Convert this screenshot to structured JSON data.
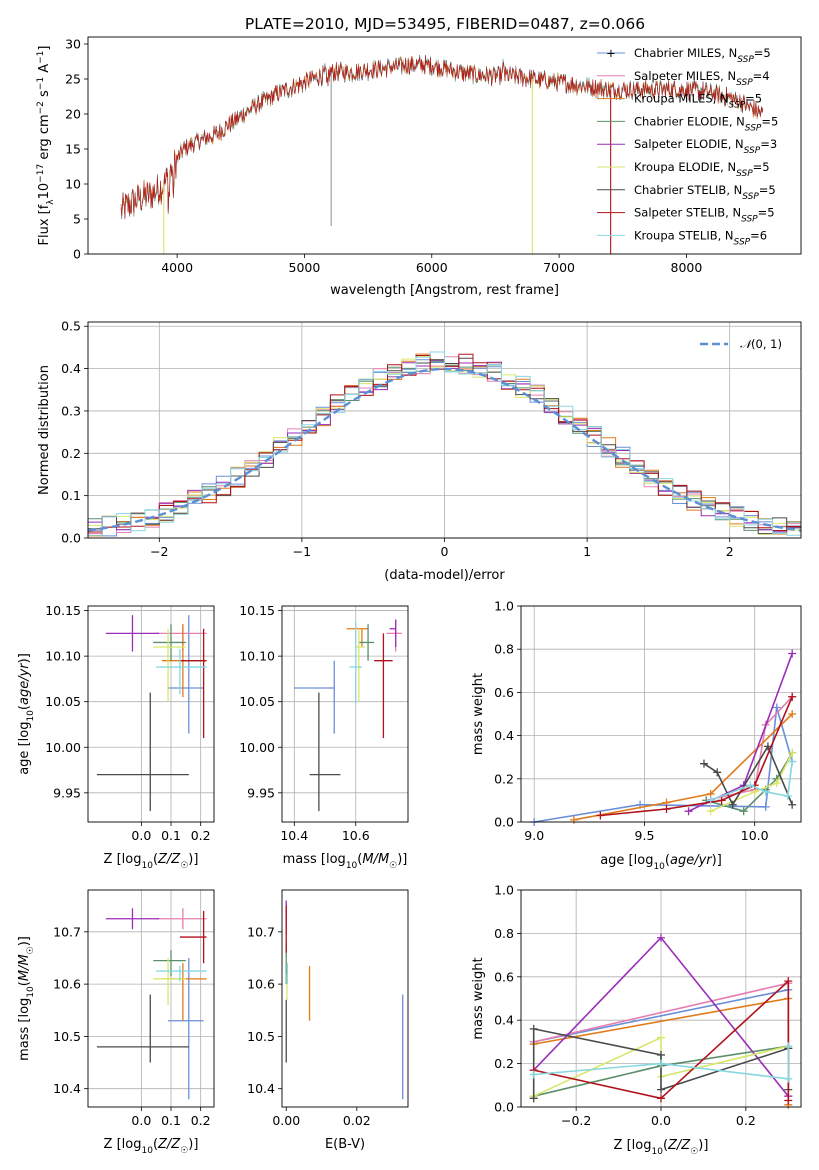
{
  "figure_title": "PLATE=2010, MJD=53495, FIBERID=0487, z=0.066",
  "colors": {
    "series": [
      "#6b8fd6",
      "#e57fb0",
      "#e07b1a",
      "#5b8f6b",
      "#9b2eb8",
      "#d9e66a",
      "#4a4a4a",
      "#b0121b",
      "#87d7e0"
    ],
    "gaussian": "#5b8fd6",
    "grid": "#b0b0b0"
  },
  "series_names": [
    "Chabrier MILES",
    "Salpeter MILES",
    "Kroupa MILES",
    "Chabrier ELODIE",
    "Salpeter ELODIE",
    "Kroupa ELODIE",
    "Chabrier STELIB",
    "Salpeter STELIB",
    "Kroupa STELIB"
  ],
  "chart_data": [
    {
      "id": "spectrum",
      "type": "line",
      "title": "PLATE=2010, MJD=53495, FIBERID=0487, z=0.066",
      "xlabel": "wavelength [Angstrom, rest frame]",
      "ylabel": "Flux [fλ10⁻¹⁷ erg cm⁻² s⁻¹ A⁻¹]",
      "xlim": [
        3300,
        8900
      ],
      "ylim": [
        0,
        31
      ],
      "xticks": [
        "4000",
        "5000",
        "6000",
        "7000",
        "8000"
      ],
      "yticks": [
        "0",
        "5",
        "10",
        "15",
        "20",
        "25",
        "30"
      ],
      "continuum_anchors": {
        "x": [
          3550,
          3700,
          3800,
          3900,
          3950,
          4050,
          4150,
          4300,
          4450,
          4600,
          4800,
          5000,
          5200,
          5400,
          5600,
          5800,
          6000,
          6200,
          6400,
          6600,
          6800,
          7000,
          7200,
          7400,
          7600,
          7800,
          8000,
          8200,
          8400,
          8600
        ],
        "y": [
          6,
          8,
          8.5,
          10,
          12,
          15,
          16,
          17,
          19,
          21,
          23,
          24.5,
          26,
          26,
          26.5,
          27,
          27,
          26,
          25.5,
          25.5,
          25,
          24.5,
          24,
          23.5,
          23.5,
          23.5,
          23.5,
          23,
          22,
          20
        ]
      },
      "legend": [
        "Chabrier MILES, N_SSP=5",
        "Salpeter MILES, N_SSP=4",
        "Kroupa MILES, N_SSP=5",
        "Chabrier ELODIE, N_SSP=5",
        "Salpeter ELODIE, N_SSP=3",
        "Kroupa ELODIE, N_SSP=5",
        "Chabrier STELIB, N_SSP=5",
        "Salpeter STELIB, N_SSP=5",
        "Kroupa STELIB, N_SSP=6"
      ],
      "legend_position": "top-right",
      "grid": false
    },
    {
      "id": "residuals",
      "type": "histogram",
      "xlabel": "(data-model)/error",
      "ylabel": "Normed distribution",
      "xlim": [
        -2.5,
        2.5
      ],
      "ylim": [
        0,
        0.51
      ],
      "xticks": [
        "−2",
        "−1",
        "0",
        "1",
        "2"
      ],
      "yticks": [
        "0.0",
        "0.1",
        "0.2",
        "0.3",
        "0.4",
        "0.5"
      ],
      "bin_width": 0.1,
      "legend": [
        "𝒩(0, 1)"
      ],
      "legend_position": "top-right",
      "grid": true
    },
    {
      "id": "age_vs_Z",
      "type": "errorbar",
      "xlabel": "Z [log10(Z/Z☉)]",
      "ylabel": "age  [log10(age/yr)]",
      "xlim": [
        -0.18,
        0.245
      ],
      "ylim": [
        9.918,
        10.155
      ],
      "xticks": [
        "0.0",
        "0.1",
        "0.2"
      ],
      "yticks": [
        "9.95",
        "10.00",
        "10.05",
        "10.10",
        "10.15"
      ],
      "points": [
        {
          "x": 0.16,
          "y": 10.065,
          "xerr": [
            0.07,
            0.05
          ],
          "yerr": [
            0.05,
            0.08
          ]
        },
        {
          "x": 0.14,
          "y": 10.125,
          "xerr": [
            0.09,
            0.08
          ],
          "yerr": [
            0.02,
            0.01
          ]
        },
        {
          "x": 0.14,
          "y": 10.095,
          "xerr": [
            0.07,
            0.08
          ],
          "yerr": [
            0.04,
            0.04
          ]
        },
        {
          "x": 0.1,
          "y": 10.115,
          "xerr": [
            0.06,
            0.05
          ],
          "yerr": [
            0.02,
            0.02
          ]
        },
        {
          "x": -0.03,
          "y": 10.125,
          "xerr": [
            0.09,
            0.09
          ],
          "yerr": [
            0.02,
            0.02
          ]
        },
        {
          "x": 0.09,
          "y": 10.11,
          "xerr": [
            0.05,
            0.06
          ],
          "yerr": [
            0.06,
            0.02
          ]
        },
        {
          "x": 0.03,
          "y": 9.97,
          "xerr": [
            0.18,
            0.13
          ],
          "yerr": [
            0.04,
            0.09
          ]
        },
        {
          "x": 0.21,
          "y": 10.095,
          "xerr": [
            0.08,
            0.01
          ],
          "yerr": [
            0.085,
            0.035
          ]
        },
        {
          "x": 0.13,
          "y": 10.088,
          "xerr": [
            0.08,
            0.09
          ],
          "yerr": [
            0.03,
            0.02
          ]
        }
      ],
      "grid": true
    },
    {
      "id": "age_vs_mass",
      "type": "errorbar",
      "xlabel": "mass [log10(M/M☉)]",
      "ylabel": "",
      "xlim": [
        10.36,
        10.77
      ],
      "ylim": [
        9.918,
        10.155
      ],
      "xticks": [
        "10.4",
        "10.6"
      ],
      "yticks": [
        "9.95",
        "10.00",
        "10.05",
        "10.10",
        "10.15"
      ],
      "points": [
        {
          "x": 10.53,
          "y": 10.065,
          "xerr": [
            0.13,
            0.0
          ],
          "yerr": [
            0.05,
            0.03
          ]
        },
        {
          "x": 10.73,
          "y": 10.125,
          "xerr": [
            0.03,
            0.02
          ],
          "yerr": [
            0.02,
            0.015
          ]
        },
        {
          "x": 10.62,
          "y": 10.13,
          "xerr": [
            0.05,
            0.02
          ],
          "yerr": [
            0.02,
            0.0
          ]
        },
        {
          "x": 10.64,
          "y": 10.115,
          "xerr": [
            0.03,
            0.02
          ],
          "yerr": [
            0.02,
            0.02
          ]
        },
        {
          "x": 10.73,
          "y": 10.13,
          "xerr": [
            0.02,
            0.0
          ],
          "yerr": [
            0.02,
            0.01
          ]
        },
        {
          "x": 10.61,
          "y": 10.11,
          "xerr": [
            0.01,
            0.02
          ],
          "yerr": [
            0.06,
            0.02
          ]
        },
        {
          "x": 10.48,
          "y": 9.97,
          "xerr": [
            0.03,
            0.07
          ],
          "yerr": [
            0.04,
            0.09
          ]
        },
        {
          "x": 10.69,
          "y": 10.095,
          "xerr": [
            0.03,
            0.03
          ],
          "yerr": [
            0.085,
            0.03
          ]
        },
        {
          "x": 10.6,
          "y": 10.088,
          "xerr": [
            0.02,
            0.02
          ],
          "yerr": [
            0.04,
            0.05
          ]
        }
      ],
      "grid": true
    },
    {
      "id": "weight_vs_age",
      "type": "line",
      "xlabel": "age  [log10(age/yr)]",
      "ylabel": "mass weight",
      "xlim": [
        8.94,
        10.21
      ],
      "ylim": [
        0,
        1
      ],
      "xticks": [
        "9.0",
        "9.5",
        "10.0"
      ],
      "yticks": [
        "0.0",
        "0.2",
        "0.4",
        "0.6",
        "0.8",
        "1.0"
      ],
      "series": [
        {
          "x": [
            9.0,
            9.48,
            10.05,
            10.1,
            10.17
          ],
          "y": [
            0.0,
            0.08,
            0.07,
            0.53,
            0.28
          ]
        },
        {
          "x": [
            9.78,
            10.0,
            10.05,
            10.17
          ],
          "y": [
            0.1,
            0.15,
            0.45,
            0.58
          ]
        },
        {
          "x": [
            9.18,
            9.6,
            9.8,
            10.17
          ],
          "y": [
            0.01,
            0.09,
            0.13,
            0.5
          ]
        },
        {
          "x": [
            9.78,
            9.95,
            10.05,
            10.1,
            10.17
          ],
          "y": [
            0.1,
            0.05,
            0.15,
            0.2,
            0.32
          ]
        },
        {
          "x": [
            9.7,
            9.95,
            10.17
          ],
          "y": [
            0.05,
            0.17,
            0.78
          ]
        },
        {
          "x": [
            9.8,
            10.0,
            10.1,
            10.17
          ],
          "y": [
            0.05,
            0.14,
            0.18,
            0.32
          ]
        },
        {
          "x": [
            9.77,
            9.83,
            9.9,
            10.06,
            10.17
          ],
          "y": [
            0.27,
            0.23,
            0.08,
            0.35,
            0.08
          ]
        },
        {
          "x": [
            9.3,
            9.6,
            9.85,
            10.0,
            10.17
          ],
          "y": [
            0.03,
            0.06,
            0.1,
            0.17,
            0.58
          ]
        },
        {
          "x": [
            9.8,
            9.98,
            10.05,
            10.15,
            10.17
          ],
          "y": [
            0.1,
            0.17,
            0.14,
            0.12,
            0.28
          ]
        }
      ],
      "grid": true
    },
    {
      "id": "mass_vs_Z",
      "type": "errorbar",
      "xlabel": "Z [log10(Z/Z☉)]",
      "ylabel": "mass [log10(M/M☉)]",
      "xlim": [
        -0.18,
        0.245
      ],
      "ylim": [
        10.365,
        10.78
      ],
      "xticks": [
        "0.0",
        "0.1",
        "0.2"
      ],
      "yticks": [
        "10.4",
        "10.5",
        "10.6",
        "10.7"
      ],
      "points": [
        {
          "x": 0.16,
          "y": 10.53,
          "xerr": [
            0.07,
            0.05
          ],
          "yerr": [
            0.15,
            0.12
          ]
        },
        {
          "x": 0.14,
          "y": 10.725,
          "xerr": [
            0.09,
            0.08
          ],
          "yerr": [
            0.02,
            0.02
          ]
        },
        {
          "x": 0.14,
          "y": 10.61,
          "xerr": [
            0.07,
            0.08
          ],
          "yerr": [
            0.08,
            0.03
          ]
        },
        {
          "x": 0.1,
          "y": 10.645,
          "xerr": [
            0.06,
            0.05
          ],
          "yerr": [
            0.03,
            0.02
          ]
        },
        {
          "x": -0.03,
          "y": 10.725,
          "xerr": [
            0.09,
            0.09
          ],
          "yerr": [
            0.02,
            0.02
          ]
        },
        {
          "x": 0.09,
          "y": 10.61,
          "xerr": [
            0.05,
            0.06
          ],
          "yerr": [
            0.05,
            0.04
          ]
        },
        {
          "x": 0.03,
          "y": 10.48,
          "xerr": [
            0.18,
            0.13
          ],
          "yerr": [
            0.03,
            0.1
          ]
        },
        {
          "x": 0.21,
          "y": 10.69,
          "xerr": [
            0.08,
            0.01
          ],
          "yerr": [
            0.05,
            0.05
          ]
        },
        {
          "x": 0.13,
          "y": 10.625,
          "xerr": [
            0.08,
            0.09
          ],
          "yerr": [
            0.02,
            0.01
          ]
        }
      ],
      "grid": true
    },
    {
      "id": "mass_vs_ebv",
      "type": "errorbar",
      "xlabel": "E(B-V)",
      "ylabel": "",
      "xlim": [
        -0.0012,
        0.0345
      ],
      "ylim": [
        10.365,
        10.78
      ],
      "xticks": [
        "0.00",
        "0.02"
      ],
      "yticks": [
        "10.4",
        "10.5",
        "10.6",
        "10.7"
      ],
      "points": [
        {
          "x": 0.033,
          "y": 10.48,
          "xerr": [
            0,
            0
          ],
          "yerr": [
            0.1,
            0.1
          ]
        },
        {
          "x": 0.0,
          "y": 10.725,
          "xerr": [
            0,
            0
          ],
          "yerr": [
            0.03,
            0.03
          ]
        },
        {
          "x": 0.0066,
          "y": 10.585,
          "xerr": [
            0,
            0
          ],
          "yerr": [
            0.055,
            0.05
          ]
        },
        {
          "x": 0.0,
          "y": 10.64,
          "xerr": [
            0,
            0
          ],
          "yerr": [
            0.04,
            0.04
          ]
        },
        {
          "x": 0.0,
          "y": 10.73,
          "xerr": [
            0,
            0
          ],
          "yerr": [
            0.02,
            0.03
          ]
        },
        {
          "x": 0.0002,
          "y": 10.6,
          "xerr": [
            0,
            0
          ],
          "yerr": [
            0.03,
            0.02
          ]
        },
        {
          "x": 0.0,
          "y": 10.5,
          "xerr": [
            0,
            0
          ],
          "yerr": [
            0.05,
            0.07
          ]
        },
        {
          "x": 0.0,
          "y": 10.7,
          "xerr": [
            0,
            0
          ],
          "yerr": [
            0.04,
            0.05
          ]
        },
        {
          "x": 0.0003,
          "y": 10.62,
          "xerr": [
            0,
            0
          ],
          "yerr": [
            0.02,
            0.02
          ]
        }
      ],
      "grid": false
    },
    {
      "id": "weight_vs_Z",
      "type": "line",
      "xlabel": "Z [log10(Z/Z☉)]",
      "ylabel": "mass weight",
      "xlim": [
        -0.33,
        0.33
      ],
      "ylim": [
        0,
        1
      ],
      "xticks": [
        "−0.2",
        "0.0",
        "0.2"
      ],
      "yticks": [
        "0.0",
        "0.2",
        "0.4",
        "0.6",
        "0.8",
        "1.0"
      ],
      "series": [
        {
          "x": [
            -0.3,
            0.3,
            0.3
          ],
          "y": [
            0.3,
            0.54,
            0.27
          ]
        },
        {
          "x": [
            -0.3,
            0.3,
            0.3
          ],
          "y": [
            0.3,
            0.57,
            0.05
          ]
        },
        {
          "x": [
            -0.3,
            0.3,
            0.3
          ],
          "y": [
            0.29,
            0.5,
            0.01
          ]
        },
        {
          "x": [
            -0.3,
            0.0,
            0.3
          ],
          "y": [
            0.05,
            0.19,
            0.28
          ]
        },
        {
          "x": [
            -0.3,
            0.0,
            0.3
          ],
          "y": [
            0.17,
            0.78,
            0.05
          ]
        },
        {
          "x": [
            -0.3,
            0.0,
            0.0,
            0.3
          ],
          "y": [
            0.05,
            0.32,
            0.14,
            0.28
          ]
        },
        {
          "x": [
            -0.3,
            -0.3,
            0.0,
            0.0,
            0.3,
            0.3
          ],
          "y": [
            0.04,
            0.36,
            0.24,
            0.08,
            0.27,
            0.08
          ]
        },
        {
          "x": [
            -0.3,
            0.0,
            0.3,
            0.3
          ],
          "y": [
            0.17,
            0.04,
            0.58,
            0.03
          ]
        },
        {
          "x": [
            -0.3,
            0.0,
            0.3,
            0.3
          ],
          "y": [
            0.15,
            0.2,
            0.13,
            0.28
          ]
        }
      ],
      "grid": true
    }
  ]
}
